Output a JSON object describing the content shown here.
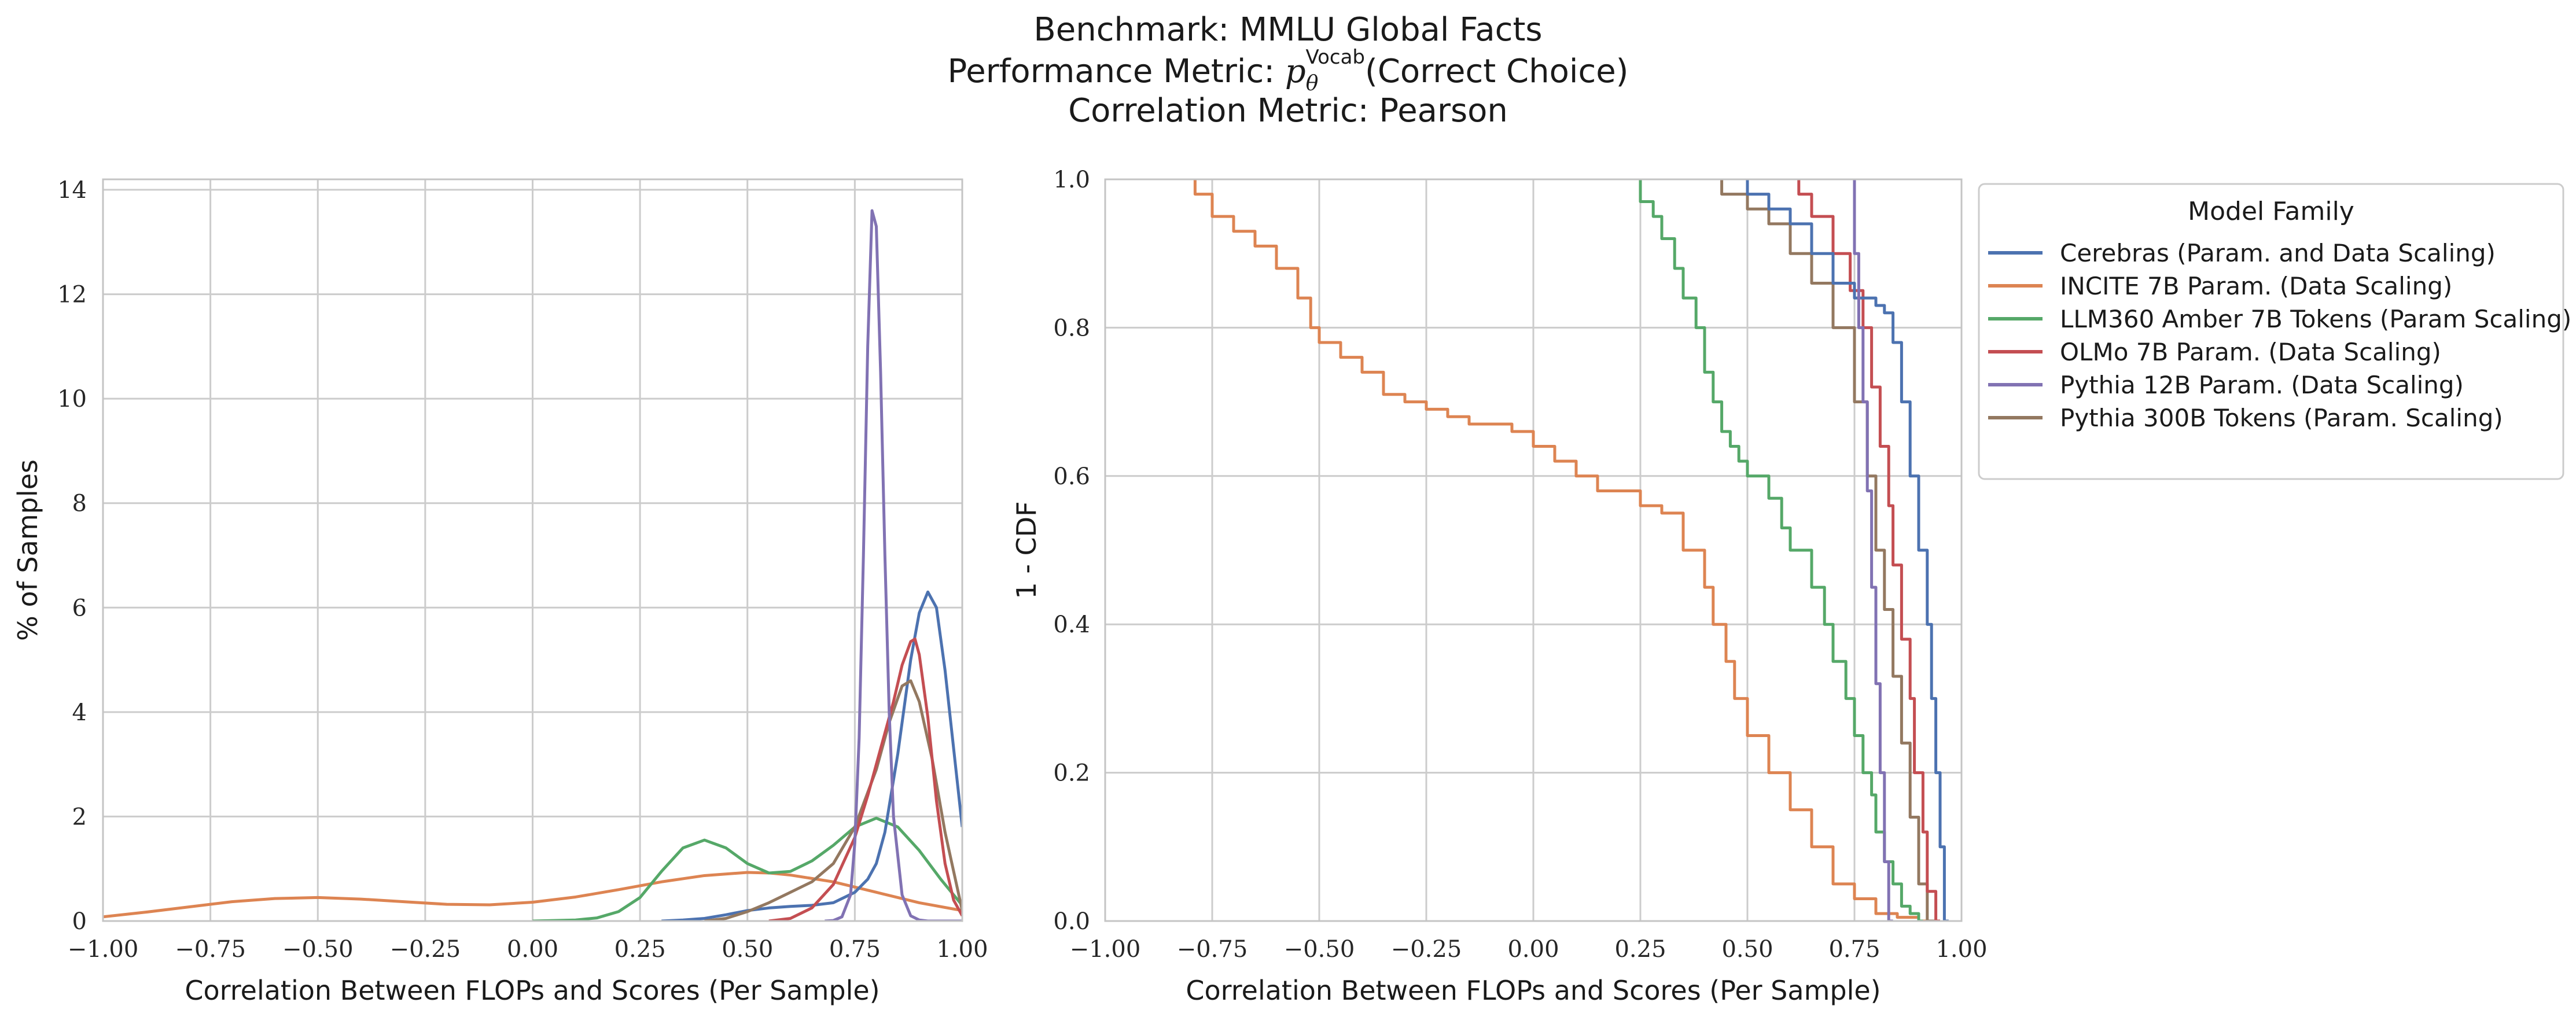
{
  "figure": {
    "title_line1": "Benchmark: MMLU Global Facts",
    "title_line2_prefix": "Performance Metric: ",
    "title_line2_symbol": "p",
    "title_line2_sub": "θ",
    "title_line2_sup": "Vocab",
    "title_line2_suffix": "(Correct Choice)",
    "title_line3": "Correlation Metric: Pearson"
  },
  "colors": {
    "Cerebras": "#4c72b0",
    "INCITE": "#dd8452",
    "LLM360": "#55a868",
    "OLMo": "#c44e52",
    "Pythia12B": "#8172b3",
    "Pythia300B": "#937860"
  },
  "chart_data": [
    {
      "type": "line",
      "subtype": "kde",
      "xlabel": "Correlation Between FLOPs and Scores (Per Sample)",
      "ylabel": "% of Samples",
      "xlim": [
        -1.0,
        1.0
      ],
      "ylim": [
        0,
        14.2
      ],
      "xticks": [
        -1.0,
        -0.75,
        -0.5,
        -0.25,
        0.0,
        0.25,
        0.5,
        0.75,
        1.0
      ],
      "xtick_labels": [
        "−1.00",
        "−0.75",
        "−0.50",
        "−0.25",
        "0.00",
        "0.25",
        "0.50",
        "0.75",
        "1.00"
      ],
      "yticks": [
        0,
        2,
        4,
        6,
        8,
        10,
        12,
        14
      ],
      "ytick_labels": [
        "0",
        "2",
        "4",
        "6",
        "8",
        "10",
        "12",
        "14"
      ],
      "grid": true,
      "series": [
        {
          "key": "INCITE",
          "x": [
            -1.0,
            -0.9,
            -0.8,
            -0.7,
            -0.6,
            -0.5,
            -0.4,
            -0.3,
            -0.2,
            -0.1,
            0.0,
            0.1,
            0.2,
            0.3,
            0.4,
            0.5,
            0.55,
            0.6,
            0.7,
            0.8,
            0.9,
            1.0
          ],
          "y": [
            0.08,
            0.17,
            0.27,
            0.37,
            0.43,
            0.45,
            0.42,
            0.37,
            0.32,
            0.31,
            0.36,
            0.46,
            0.6,
            0.75,
            0.87,
            0.93,
            0.92,
            0.88,
            0.75,
            0.55,
            0.35,
            0.2
          ]
        },
        {
          "key": "LLM360",
          "x": [
            0.0,
            0.1,
            0.15,
            0.2,
            0.25,
            0.3,
            0.35,
            0.4,
            0.45,
            0.5,
            0.55,
            0.6,
            0.65,
            0.7,
            0.75,
            0.8,
            0.85,
            0.9,
            0.95,
            1.0
          ],
          "y": [
            0.0,
            0.02,
            0.06,
            0.18,
            0.45,
            0.95,
            1.4,
            1.55,
            1.4,
            1.1,
            0.92,
            0.95,
            1.15,
            1.45,
            1.8,
            1.97,
            1.8,
            1.35,
            0.8,
            0.3
          ]
        },
        {
          "key": "Cerebras",
          "x": [
            0.3,
            0.35,
            0.4,
            0.45,
            0.5,
            0.55,
            0.6,
            0.65,
            0.7,
            0.75,
            0.78,
            0.8,
            0.82,
            0.85,
            0.88,
            0.9,
            0.92,
            0.94,
            0.96,
            0.98,
            1.0
          ],
          "y": [
            0.0,
            0.02,
            0.05,
            0.12,
            0.2,
            0.25,
            0.28,
            0.3,
            0.35,
            0.55,
            0.8,
            1.1,
            1.7,
            3.2,
            5.0,
            5.9,
            6.3,
            6.0,
            4.8,
            3.3,
            1.8
          ]
        },
        {
          "key": "Pythia300B",
          "x": [
            0.4,
            0.45,
            0.5,
            0.55,
            0.6,
            0.65,
            0.7,
            0.75,
            0.8,
            0.83,
            0.86,
            0.88,
            0.9,
            0.93,
            0.96,
            1.0
          ],
          "y": [
            0.0,
            0.05,
            0.18,
            0.35,
            0.55,
            0.75,
            1.1,
            1.8,
            2.9,
            3.8,
            4.5,
            4.6,
            4.2,
            3.1,
            1.7,
            0.2
          ]
        },
        {
          "key": "OLMo",
          "x": [
            0.55,
            0.6,
            0.65,
            0.7,
            0.75,
            0.78,
            0.81,
            0.84,
            0.86,
            0.88,
            0.89,
            0.9,
            0.92,
            0.94,
            0.96,
            0.98,
            1.0
          ],
          "y": [
            0.0,
            0.05,
            0.25,
            0.7,
            1.6,
            2.4,
            3.3,
            4.2,
            4.9,
            5.35,
            5.4,
            5.1,
            3.9,
            2.3,
            1.1,
            0.4,
            0.1
          ]
        },
        {
          "key": "Pythia12B",
          "x": [
            0.68,
            0.7,
            0.72,
            0.74,
            0.75,
            0.76,
            0.77,
            0.78,
            0.79,
            0.8,
            0.81,
            0.82,
            0.83,
            0.84,
            0.86,
            0.88,
            0.9,
            0.92,
            0.95,
            1.0
          ],
          "y": [
            0.0,
            0.01,
            0.08,
            0.5,
            1.5,
            3.5,
            7.0,
            11.0,
            13.6,
            13.3,
            10.5,
            7.0,
            4.0,
            2.0,
            0.5,
            0.1,
            0.02,
            0.0,
            0.0,
            0.0
          ]
        }
      ]
    },
    {
      "type": "line",
      "subtype": "step",
      "xlabel": "Correlation Between FLOPs and Scores (Per Sample)",
      "ylabel": "1 - CDF",
      "xlim": [
        -1.0,
        1.0
      ],
      "ylim": [
        0.0,
        1.0
      ],
      "xticks": [
        -1.0,
        -0.75,
        -0.5,
        -0.25,
        0.0,
        0.25,
        0.5,
        0.75,
        1.0
      ],
      "xtick_labels": [
        "−1.00",
        "−0.75",
        "−0.50",
        "−0.25",
        "0.00",
        "0.25",
        "0.50",
        "0.75",
        "1.00"
      ],
      "yticks": [
        0.0,
        0.2,
        0.4,
        0.6,
        0.8,
        1.0
      ],
      "ytick_labels": [
        "0.0",
        "0.2",
        "0.4",
        "0.6",
        "0.8",
        "1.0"
      ],
      "grid": true,
      "legend": {
        "title": "Model Family",
        "placement": "outside-right-top",
        "entries": [
          {
            "key": "Cerebras",
            "label": "Cerebras (Param. and Data Scaling)"
          },
          {
            "key": "INCITE",
            "label": "INCITE 7B Param. (Data Scaling)"
          },
          {
            "key": "LLM360",
            "label": "LLM360 Amber 7B Tokens (Param Scaling)"
          },
          {
            "key": "OLMo",
            "label": "OLMo 7B Param. (Data Scaling)"
          },
          {
            "key": "Pythia12B",
            "label": "Pythia 12B Param. (Data Scaling)"
          },
          {
            "key": "Pythia300B",
            "label": "Pythia 300B Tokens (Param. Scaling)"
          }
        ]
      },
      "series": [
        {
          "key": "INCITE",
          "x": [
            -0.79,
            -0.75,
            -0.7,
            -0.65,
            -0.6,
            -0.55,
            -0.52,
            -0.5,
            -0.45,
            -0.4,
            -0.35,
            -0.3,
            -0.25,
            -0.2,
            -0.15,
            -0.1,
            -0.05,
            0.0,
            0.05,
            0.1,
            0.15,
            0.2,
            0.25,
            0.3,
            0.35,
            0.4,
            0.42,
            0.45,
            0.47,
            0.5,
            0.55,
            0.6,
            0.65,
            0.7,
            0.75,
            0.8,
            0.85,
            0.9,
            0.95
          ],
          "y": [
            1.0,
            0.98,
            0.95,
            0.93,
            0.91,
            0.88,
            0.84,
            0.8,
            0.78,
            0.76,
            0.74,
            0.71,
            0.7,
            0.69,
            0.68,
            0.67,
            0.67,
            0.66,
            0.64,
            0.62,
            0.6,
            0.58,
            0.58,
            0.56,
            0.55,
            0.5,
            0.45,
            0.4,
            0.35,
            0.3,
            0.25,
            0.2,
            0.15,
            0.1,
            0.05,
            0.03,
            0.01,
            0.005,
            0.0
          ]
        },
        {
          "key": "LLM360",
          "x": [
            0.25,
            0.28,
            0.3,
            0.33,
            0.35,
            0.38,
            0.4,
            0.42,
            0.44,
            0.46,
            0.48,
            0.5,
            0.55,
            0.58,
            0.6,
            0.65,
            0.68,
            0.7,
            0.73,
            0.75,
            0.77,
            0.79,
            0.8,
            0.82,
            0.84,
            0.86,
            0.88,
            0.9,
            0.91
          ],
          "y": [
            1.0,
            0.97,
            0.95,
            0.92,
            0.88,
            0.84,
            0.8,
            0.74,
            0.7,
            0.66,
            0.64,
            0.62,
            0.6,
            0.57,
            0.53,
            0.5,
            0.45,
            0.4,
            0.35,
            0.3,
            0.25,
            0.2,
            0.17,
            0.12,
            0.08,
            0.05,
            0.02,
            0.01,
            0.0
          ]
        },
        {
          "key": "Pythia300B",
          "x": [
            0.44,
            0.5,
            0.55,
            0.6,
            0.65,
            0.7,
            0.75,
            0.78,
            0.8,
            0.82,
            0.84,
            0.86,
            0.88,
            0.9,
            0.92,
            0.94
          ],
          "y": [
            1.0,
            0.98,
            0.96,
            0.94,
            0.9,
            0.86,
            0.8,
            0.7,
            0.6,
            0.5,
            0.42,
            0.33,
            0.24,
            0.14,
            0.05,
            0.0
          ]
        },
        {
          "key": "OLMo",
          "x": [
            0.62,
            0.65,
            0.7,
            0.74,
            0.77,
            0.79,
            0.81,
            0.83,
            0.84,
            0.86,
            0.88,
            0.89,
            0.91,
            0.92,
            0.94,
            0.95
          ],
          "y": [
            1.0,
            0.98,
            0.95,
            0.9,
            0.85,
            0.8,
            0.72,
            0.64,
            0.56,
            0.48,
            0.38,
            0.3,
            0.2,
            0.12,
            0.04,
            0.0
          ]
        },
        {
          "key": "Cerebras",
          "x": [
            0.5,
            0.55,
            0.6,
            0.65,
            0.7,
            0.75,
            0.8,
            0.82,
            0.84,
            0.86,
            0.88,
            0.9,
            0.92,
            0.93,
            0.94,
            0.95,
            0.96,
            0.97
          ],
          "y": [
            1.0,
            0.98,
            0.96,
            0.94,
            0.9,
            0.86,
            0.84,
            0.83,
            0.82,
            0.78,
            0.7,
            0.6,
            0.5,
            0.4,
            0.3,
            0.2,
            0.1,
            0.0
          ]
        },
        {
          "key": "Pythia12B",
          "x": [
            0.75,
            0.76,
            0.77,
            0.78,
            0.79,
            0.8,
            0.81,
            0.82,
            0.83,
            0.84
          ],
          "y": [
            1.0,
            0.9,
            0.8,
            0.7,
            0.58,
            0.45,
            0.32,
            0.2,
            0.08,
            0.0
          ]
        }
      ]
    }
  ]
}
